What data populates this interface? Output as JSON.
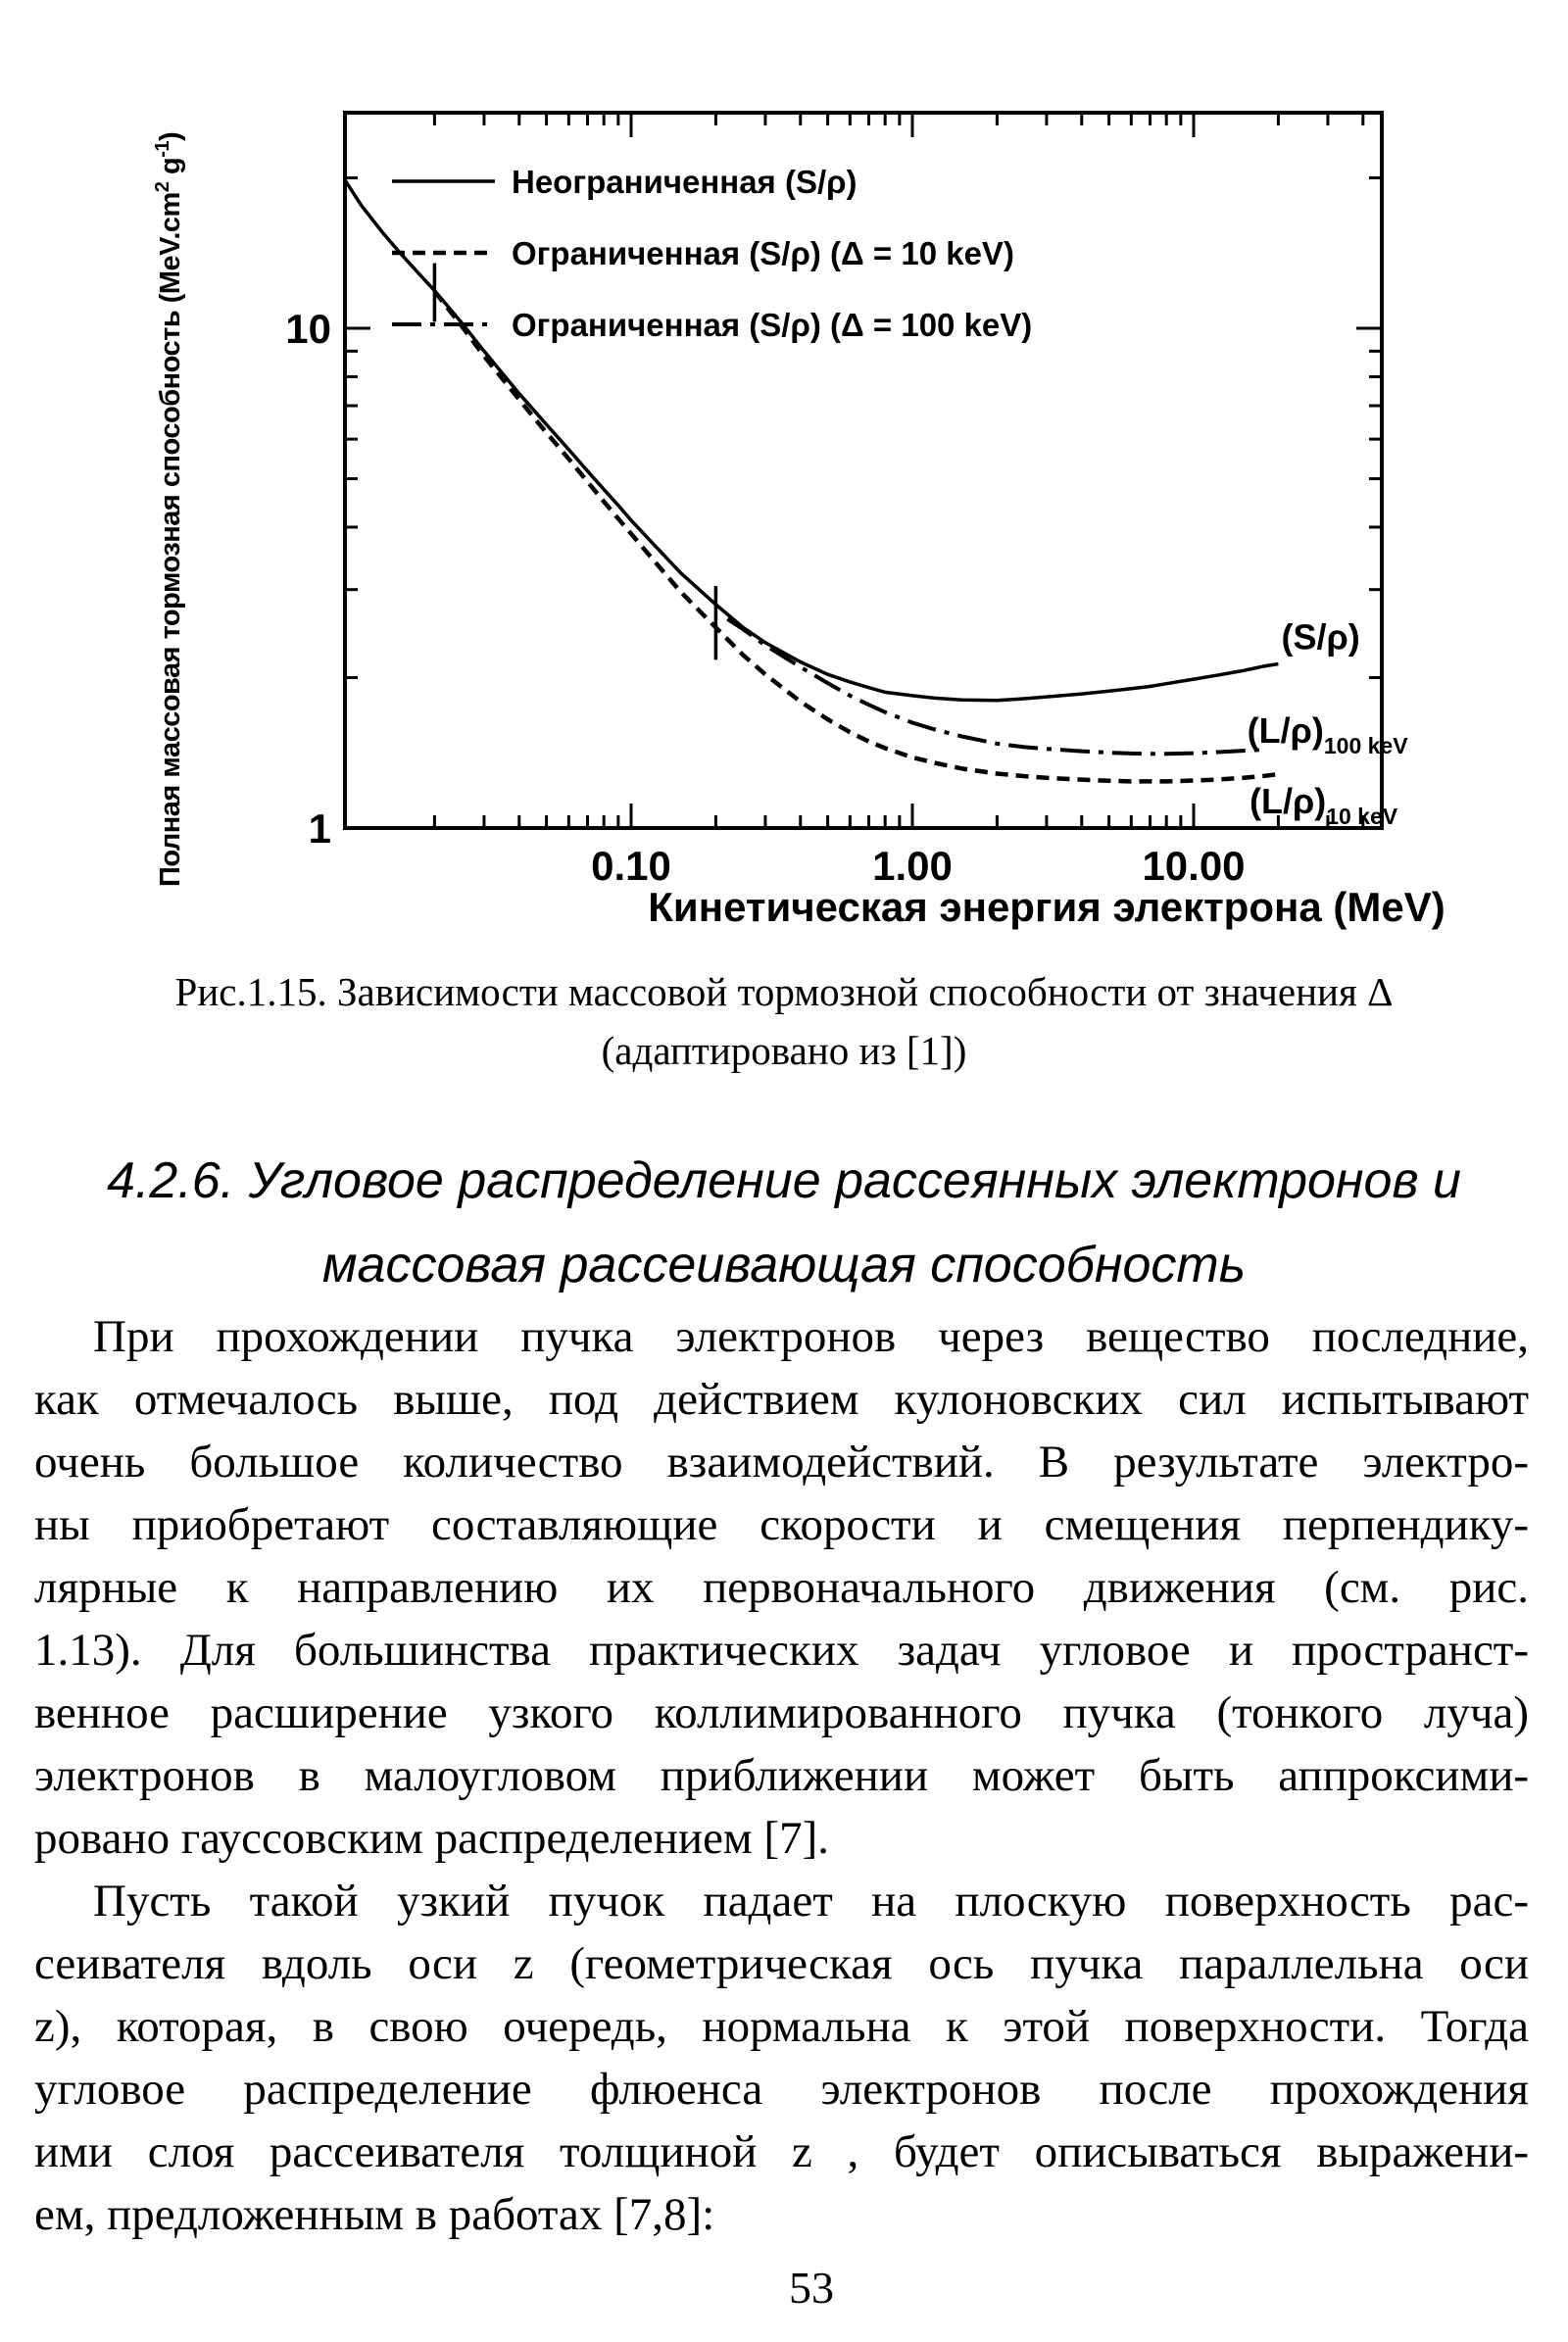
{
  "page": {
    "number": "53"
  },
  "figure": {
    "caption_line1": "Рис.1.15. Зависимости массовой тормозной способности от значения Δ",
    "caption_line2": "(адаптировано из [1])"
  },
  "section": {
    "heading_line1": "4.2.6. Угловое распределение рассеянных электронов и",
    "heading_line2": "массовая рассеивающая способность"
  },
  "body": {
    "paragraphs": [
      {
        "lines": [
          "При  прохождении пучка электронов через вещество последние,",
          "как отмечалось выше, под действием кулоновских сил испытывают",
          "очень большое количество взаимодействий. В результате электро-",
          "ны приобретают составляющие скорости и смещения перпендику-",
          "лярные к направлению их  первоначального движения (см. рис.",
          "1.13). Для большинства практических задач угловое и пространст-",
          "венное расширение узкого коллимированного пучка (тонкого луча)",
          "электронов в малоугловом приближении может быть аппроксими-",
          "ровано гауссовским распределением [7]."
        ]
      },
      {
        "lines": [
          "Пусть такой узкий пучок падает на плоскую поверхность рас-",
          "сеивателя вдоль оси z (геометрическая ось пучка параллельна оси",
          "z), которая, в свою очередь, нормальна к этой поверхности. Тогда",
          "угловое распределение флюенса электронов после прохождения",
          "ими слоя рассеивателя толщиной z , будет описываться выражени-",
          "ем, предложенным в работах [7,8]:"
        ]
      }
    ]
  },
  "chart_data": {
    "type": "line",
    "title": "",
    "xlabel": "Кинетическая энергия электрона (MeV)",
    "ylabel": "Полная массовая тормозная способность (MeV.cm2 g-1)",
    "ylabel_parts": [
      {
        "t": "Полная массовая тормозная способность (MeV.cm",
        "sup": false
      },
      {
        "t": "2",
        "sup": true
      },
      {
        "t": " g",
        "sup": false
      },
      {
        "t": "-1",
        "sup": true
      },
      {
        "t": ")",
        "sup": false
      }
    ],
    "xscale": "log",
    "yscale": "log",
    "xlim": [
      0.0095,
      50
    ],
    "ylim": [
      1,
      27
    ],
    "grid": false,
    "legend_position": "upper-left-inside",
    "x_major_ticks": [
      {
        "v": 0.1,
        "label": "0.10"
      },
      {
        "v": 1.0,
        "label": "1.00"
      },
      {
        "v": 10.0,
        "label": "10.00"
      }
    ],
    "x_minor_ticks": [
      0.02,
      0.03,
      0.04,
      0.05,
      0.06,
      0.07,
      0.08,
      0.09,
      0.2,
      0.3,
      0.4,
      0.5,
      0.6,
      0.7,
      0.8,
      0.9,
      2,
      3,
      4,
      5,
      6,
      7,
      8,
      9,
      20,
      30,
      40
    ],
    "y_major_ticks": [
      {
        "v": 1,
        "label": "1"
      },
      {
        "v": 10,
        "label": "10"
      }
    ],
    "y_minor_ticks": [
      2,
      3,
      4,
      5,
      6,
      7,
      8,
      9,
      20
    ],
    "legend": [
      {
        "style": "solid",
        "label": "Неограниченная (S/ρ)"
      },
      {
        "style": "dashed",
        "label": "Ограниченная (S/ρ) (Δ = 10 keV)"
      },
      {
        "style": "dashdot",
        "label": "Ограниченная (S/ρ) (Δ = 100 keV)"
      }
    ],
    "series": [
      {
        "name": "Неограниченная (S/ρ)",
        "style": "solid",
        "points": [
          [
            0.0096,
            19.8
          ],
          [
            0.011,
            17.6
          ],
          [
            0.013,
            15.6
          ],
          [
            0.015,
            14.2
          ],
          [
            0.0175,
            12.9
          ],
          [
            0.02,
            11.9
          ],
          [
            0.025,
            10.25
          ],
          [
            0.03,
            9.0
          ],
          [
            0.04,
            7.4
          ],
          [
            0.05,
            6.42
          ],
          [
            0.06,
            5.72
          ],
          [
            0.07,
            5.18
          ],
          [
            0.08,
            4.76
          ],
          [
            0.09,
            4.42
          ],
          [
            0.1,
            4.13
          ],
          [
            0.12,
            3.7
          ],
          [
            0.15,
            3.24
          ],
          [
            0.2,
            2.8
          ],
          [
            0.25,
            2.52
          ],
          [
            0.3,
            2.35
          ],
          [
            0.4,
            2.15
          ],
          [
            0.5,
            2.03
          ],
          [
            0.6,
            1.96
          ],
          [
            0.7,
            1.91
          ],
          [
            0.8,
            1.87
          ],
          [
            1,
            1.84
          ],
          [
            1.2,
            1.82
          ],
          [
            1.5,
            1.805
          ],
          [
            2,
            1.8
          ],
          [
            2.5,
            1.815
          ],
          [
            3,
            1.83
          ],
          [
            4,
            1.855
          ],
          [
            5,
            1.88
          ],
          [
            6,
            1.9
          ],
          [
            7,
            1.92
          ],
          [
            8,
            1.945
          ],
          [
            10,
            1.985
          ],
          [
            12,
            2.02
          ],
          [
            15,
            2.065
          ],
          [
            18,
            2.11
          ],
          [
            20,
            2.13
          ]
        ]
      },
      {
        "name": "Ограниченная (S/ρ) (Δ = 10 keV)",
        "style": "dashed",
        "points": [
          [
            0.02,
            11.85
          ],
          [
            0.025,
            10.1
          ],
          [
            0.03,
            8.8
          ],
          [
            0.04,
            7.2
          ],
          [
            0.05,
            6.18
          ],
          [
            0.06,
            5.48
          ],
          [
            0.07,
            4.93
          ],
          [
            0.08,
            4.5
          ],
          [
            0.09,
            4.16
          ],
          [
            0.1,
            3.88
          ],
          [
            0.12,
            3.44
          ],
          [
            0.15,
            2.97
          ],
          [
            0.2,
            2.52
          ],
          [
            0.25,
            2.22
          ],
          [
            0.3,
            2.03
          ],
          [
            0.4,
            1.79
          ],
          [
            0.5,
            1.65
          ],
          [
            0.6,
            1.555
          ],
          [
            0.7,
            1.49
          ],
          [
            0.8,
            1.445
          ],
          [
            1,
            1.385
          ],
          [
            1.2,
            1.35
          ],
          [
            1.5,
            1.315
          ],
          [
            2,
            1.285
          ],
          [
            2.5,
            1.27
          ],
          [
            3,
            1.26
          ],
          [
            4,
            1.25
          ],
          [
            5,
            1.243
          ],
          [
            6,
            1.24
          ],
          [
            7,
            1.24
          ],
          [
            8,
            1.24
          ],
          [
            10,
            1.245
          ],
          [
            12,
            1.25
          ],
          [
            15,
            1.26
          ],
          [
            18,
            1.272
          ],
          [
            20,
            1.282
          ]
        ]
      },
      {
        "name": "Ограниченная (S/ρ) (Δ = 100 keV)",
        "style": "dashdot",
        "points": [
          [
            0.22,
            2.62
          ],
          [
            0.25,
            2.5
          ],
          [
            0.3,
            2.32
          ],
          [
            0.35,
            2.2
          ],
          [
            0.4,
            2.1
          ],
          [
            0.5,
            1.95
          ],
          [
            0.6,
            1.84
          ],
          [
            0.7,
            1.765
          ],
          [
            0.8,
            1.705
          ],
          [
            1,
            1.625
          ],
          [
            1.2,
            1.575
          ],
          [
            1.5,
            1.525
          ],
          [
            2,
            1.475
          ],
          [
            2.5,
            1.452
          ],
          [
            3,
            1.44
          ],
          [
            4,
            1.425
          ],
          [
            5,
            1.415
          ],
          [
            6,
            1.41
          ],
          [
            7,
            1.408
          ],
          [
            8,
            1.408
          ],
          [
            10,
            1.412
          ],
          [
            12,
            1.418
          ],
          [
            15,
            1.428
          ],
          [
            18,
            1.435
          ]
        ]
      }
    ],
    "branch_marks": [
      {
        "x": 0.02,
        "y_from": 13.5,
        "y_to": 10.3
      },
      {
        "x": 0.2,
        "y_from": 3.05,
        "y_to": 2.17
      }
    ],
    "curve_labels": [
      {
        "text": "(S/ρ)",
        "sub": "",
        "x": 20.5,
        "y": 2.42
      },
      {
        "text": "(L/ρ)",
        "sub": "100 keV",
        "x": 15.5,
        "y": 1.57
      },
      {
        "text": "(L/ρ)",
        "sub": "10 keV",
        "x": 15.8,
        "y": 1.135
      }
    ]
  }
}
